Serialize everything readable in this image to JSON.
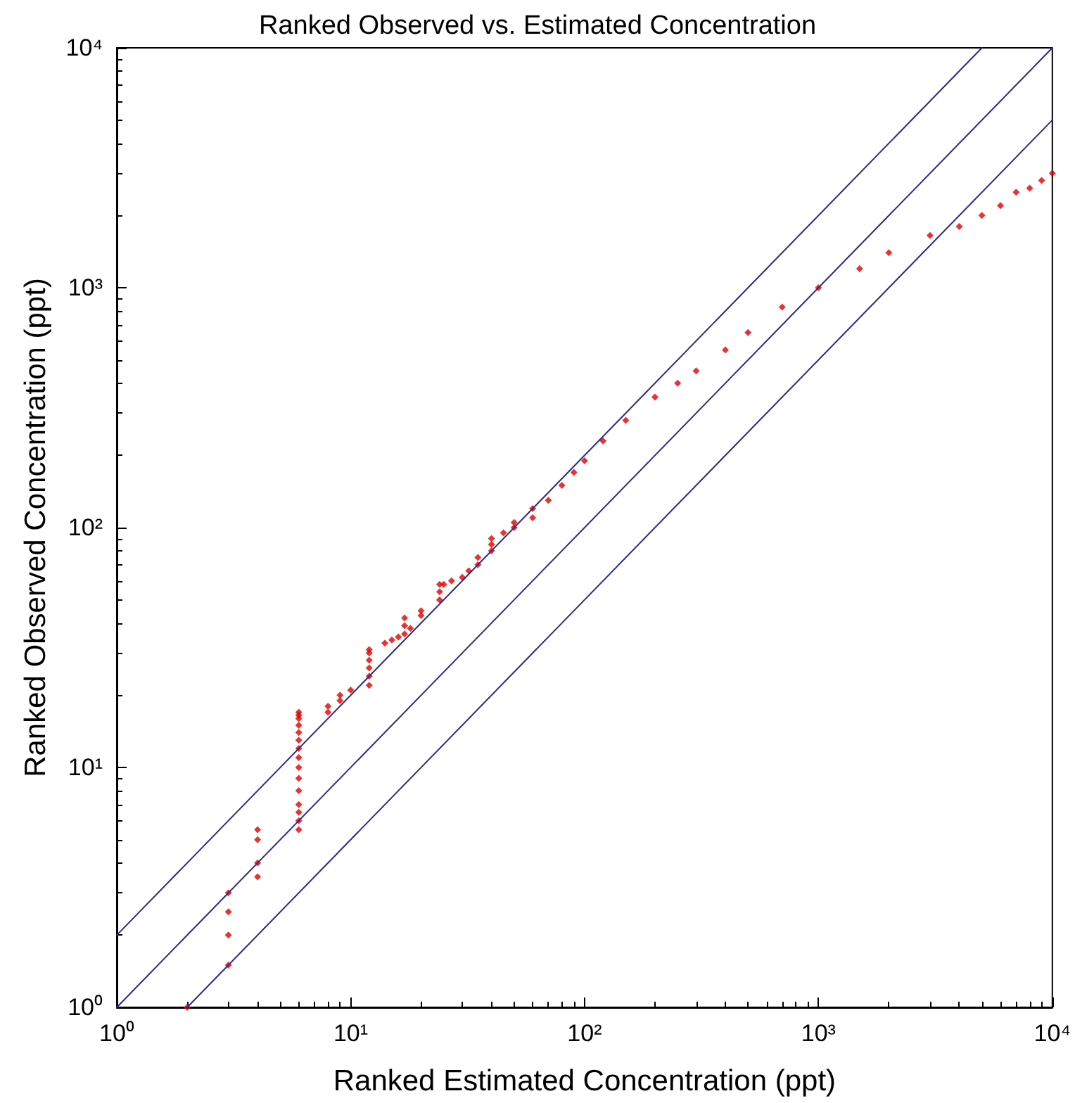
{
  "chart_data": {
    "type": "scatter",
    "title": "Ranked Observed vs. Estimated Concentration",
    "xlabel": "Ranked Estimated Concentration (ppt)",
    "ylabel": "Ranked Observed Concentration (ppt)",
    "log": "xy",
    "marker": "diamond",
    "xlim": [
      1,
      10000
    ],
    "ylim": [
      1,
      10000
    ],
    "xticks": [
      {
        "value": 1,
        "label": "10⁰"
      },
      {
        "value": 10,
        "label": "10¹"
      },
      {
        "value": 100,
        "label": "10²"
      },
      {
        "value": 1000,
        "label": "10³"
      },
      {
        "value": 10000,
        "label": "10⁴"
      }
    ],
    "yticks": [
      {
        "value": 1,
        "label": "10⁰"
      },
      {
        "value": 10,
        "label": "10¹"
      },
      {
        "value": 100,
        "label": "10²"
      },
      {
        "value": 1000,
        "label": "10³"
      },
      {
        "value": 10000,
        "label": "10⁴"
      }
    ],
    "series": [
      {
        "type": "line",
        "color": "#2b2b8c",
        "line_style": "solid",
        "marker": "none",
        "x": [
          1,
          5000
        ],
        "values": [
          2,
          10000
        ]
      },
      {
        "type": "line",
        "color": "#2b2b8c",
        "line_style": "solid",
        "marker": "none",
        "x": [
          1,
          10000
        ],
        "values": [
          1,
          10000
        ]
      },
      {
        "type": "line",
        "color": "#2b2b8c",
        "line_style": "solid",
        "marker": "none",
        "x": [
          2,
          10000
        ],
        "values": [
          1,
          5000
        ]
      },
      {
        "color": "#e00000",
        "x": [
          2,
          3,
          3,
          3,
          3,
          4,
          4,
          4,
          4,
          6,
          6,
          6,
          6,
          6,
          6,
          6,
          6,
          6,
          6,
          6,
          6,
          6,
          6,
          6,
          8,
          8,
          9,
          9,
          10,
          12,
          12,
          12,
          12,
          12,
          12,
          14,
          15,
          16,
          17,
          17,
          17,
          18,
          20,
          20,
          24,
          24,
          24,
          25,
          27,
          30,
          32,
          35,
          35,
          40,
          40,
          40,
          45,
          50,
          50,
          60,
          60,
          70,
          80,
          90,
          100,
          120,
          150,
          200,
          250,
          300,
          400,
          500,
          700,
          1000,
          1500,
          2000,
          3000,
          4000,
          5000,
          6000,
          7000,
          8000,
          9000,
          10000
        ],
        "values": [
          1,
          1.5,
          2,
          2.5,
          3,
          3.5,
          4,
          5,
          5.5,
          5.5,
          6,
          6.5,
          7,
          8,
          9,
          10,
          11,
          12,
          13,
          14,
          15,
          16,
          16.5,
          17,
          17,
          18,
          19,
          20,
          21,
          22,
          24,
          26,
          28,
          30,
          31,
          33,
          34,
          35,
          36,
          39,
          42,
          38,
          43,
          45,
          50,
          54,
          58,
          58,
          60,
          62,
          66,
          70,
          75,
          80,
          85,
          90,
          95,
          100,
          105,
          110,
          120,
          130,
          150,
          170,
          190,
          230,
          280,
          350,
          400,
          450,
          550,
          650,
          830,
          1000,
          1200,
          1400,
          1650,
          1800,
          2000,
          2200,
          2500,
          2600,
          2800,
          3000
        ]
      }
    ]
  }
}
